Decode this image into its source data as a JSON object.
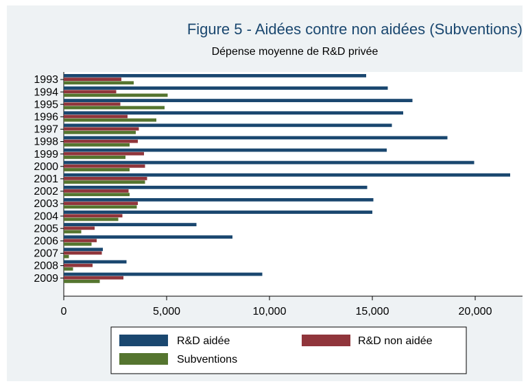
{
  "chart_data": {
    "type": "hbar",
    "title": "Figure 5 - Aidées contre non aidées (Subventions)",
    "subtitle": "Dépense moyenne de R&D privée",
    "categories": [
      "1993",
      "1994",
      "1995",
      "1996",
      "1997",
      "1998",
      "1999",
      "2000",
      "2001",
      "2002",
      "2003",
      "2004",
      "2005",
      "2006",
      "2007",
      "2008",
      "2009"
    ],
    "series": [
      {
        "name": "R&D aidée",
        "color": "#1a476f",
        "values": [
          14700,
          15750,
          16950,
          16500,
          15950,
          18650,
          15700,
          19950,
          21700,
          14750,
          15050,
          15000,
          6450,
          8200,
          1900,
          3050,
          9650
        ]
      },
      {
        "name": "R&D non aidée",
        "color": "#90353b",
        "values": [
          2800,
          2550,
          2750,
          3100,
          3650,
          3600,
          3900,
          3950,
          4050,
          3150,
          3600,
          2850,
          1500,
          1600,
          1850,
          1400,
          2900
        ]
      },
      {
        "name": "Subventions",
        "color": "#55752f",
        "values": [
          3400,
          5050,
          4900,
          4500,
          3500,
          3200,
          3000,
          3200,
          3950,
          3200,
          3550,
          2650,
          850,
          1350,
          250,
          450,
          1750
        ]
      }
    ],
    "xlim": [
      0,
      22300
    ],
    "xticks": [
      0,
      {
        "value": 5000,
        "label": "5,000"
      },
      {
        "value": 10000,
        "label": "10,000"
      },
      {
        "value": 15000,
        "label": "15,000"
      },
      {
        "value": 20000,
        "label": "20,000"
      }
    ],
    "legend": "bottom"
  }
}
